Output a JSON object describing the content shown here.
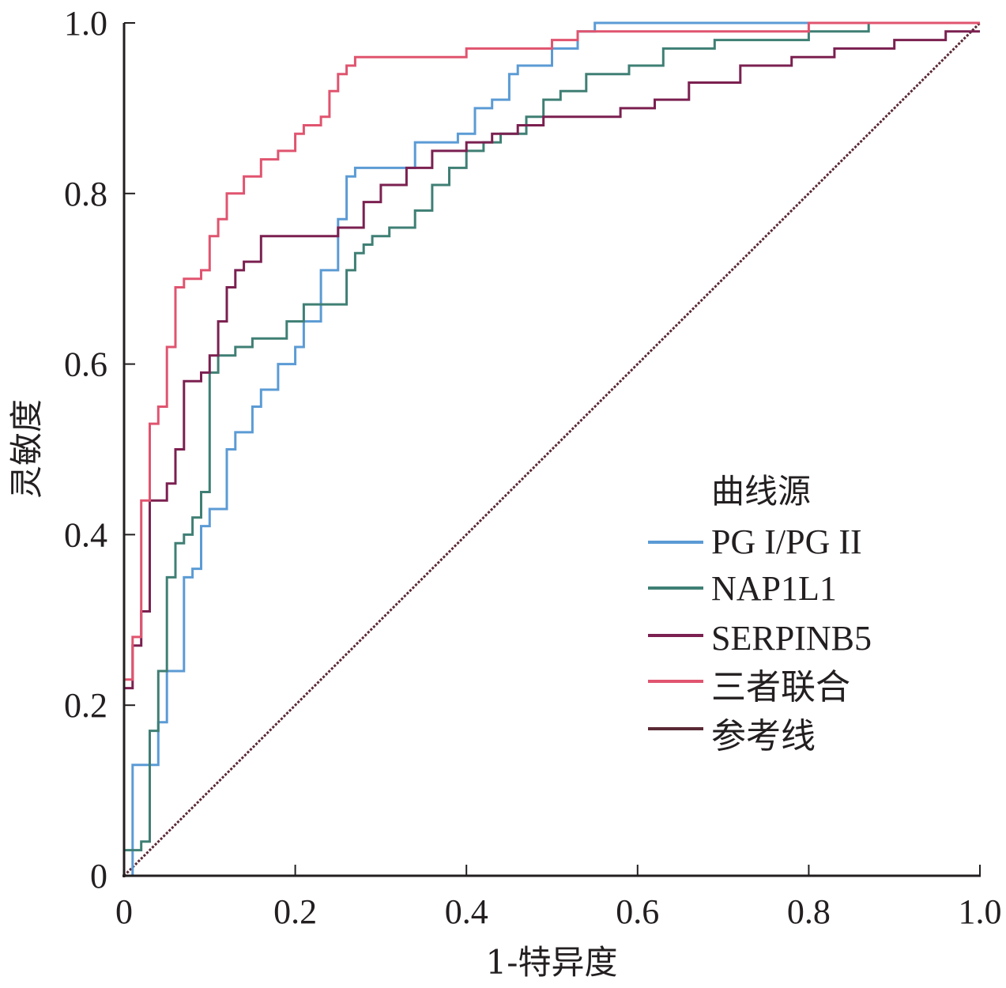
{
  "chart_data": {
    "type": "line",
    "title": "",
    "xlabel": "1-特异度",
    "ylabel": "灵敏度",
    "xlim": [
      0,
      1.0
    ],
    "ylim": [
      0,
      1.0
    ],
    "x_ticks": [
      0,
      0.2,
      0.4,
      0.6,
      0.8,
      1.0
    ],
    "x_tick_labels": [
      "0",
      "0.2",
      "0.4",
      "0.6",
      "0.8",
      "1.0"
    ],
    "y_ticks": [
      0,
      0.2,
      0.4,
      0.6,
      0.8,
      1.0
    ],
    "y_tick_labels": [
      "0",
      "0.2",
      "0.4",
      "0.6",
      "0.8",
      "1.0"
    ],
    "grid": false,
    "legend": {
      "title": "曲线源",
      "placement": "right"
    },
    "series": [
      {
        "name": "PG I/PG II",
        "color": "#5b9bd5",
        "step": true,
        "x": [
          0,
          0.01,
          0.01,
          0.04,
          0.04,
          0.05,
          0.05,
          0.07,
          0.07,
          0.08,
          0.08,
          0.09,
          0.09,
          0.1,
          0.1,
          0.12,
          0.12,
          0.13,
          0.13,
          0.15,
          0.15,
          0.16,
          0.16,
          0.18,
          0.18,
          0.2,
          0.2,
          0.21,
          0.21,
          0.23,
          0.23,
          0.25,
          0.25,
          0.26,
          0.26,
          0.27,
          0.27,
          0.29,
          0.29,
          0.34,
          0.34,
          0.37,
          0.37,
          0.39,
          0.39,
          0.41,
          0.41,
          0.43,
          0.43,
          0.45,
          0.45,
          0.46,
          0.46,
          0.5,
          0.5,
          0.53,
          0.53,
          0.55,
          0.55,
          1.0
        ],
        "y": [
          0,
          0,
          0.13,
          0.13,
          0.18,
          0.18,
          0.24,
          0.24,
          0.35,
          0.35,
          0.36,
          0.36,
          0.41,
          0.41,
          0.43,
          0.43,
          0.5,
          0.5,
          0.52,
          0.52,
          0.55,
          0.55,
          0.57,
          0.57,
          0.6,
          0.6,
          0.62,
          0.62,
          0.65,
          0.65,
          0.71,
          0.71,
          0.77,
          0.77,
          0.82,
          0.82,
          0.83,
          0.83,
          0.83,
          0.83,
          0.86,
          0.86,
          0.86,
          0.86,
          0.87,
          0.87,
          0.9,
          0.9,
          0.91,
          0.91,
          0.94,
          0.94,
          0.95,
          0.95,
          0.97,
          0.97,
          0.99,
          0.99,
          1.0,
          1.0
        ]
      },
      {
        "name": "NAP1L1",
        "color": "#3f7f74",
        "step": true,
        "x": [
          0,
          0.02,
          0.02,
          0.03,
          0.03,
          0.04,
          0.04,
          0.05,
          0.05,
          0.06,
          0.06,
          0.07,
          0.07,
          0.08,
          0.08,
          0.09,
          0.09,
          0.1,
          0.1,
          0.11,
          0.11,
          0.13,
          0.13,
          0.15,
          0.15,
          0.19,
          0.19,
          0.21,
          0.21,
          0.24,
          0.24,
          0.26,
          0.26,
          0.27,
          0.27,
          0.28,
          0.28,
          0.29,
          0.29,
          0.31,
          0.31,
          0.34,
          0.34,
          0.36,
          0.36,
          0.38,
          0.38,
          0.4,
          0.4,
          0.42,
          0.42,
          0.44,
          0.44,
          0.47,
          0.47,
          0.49,
          0.49,
          0.51,
          0.51,
          0.54,
          0.54,
          0.59,
          0.59,
          0.63,
          0.63,
          0.69,
          0.69,
          0.75,
          0.75,
          0.8,
          0.8,
          0.85,
          0.85,
          0.87,
          0.87,
          0.88,
          0.88,
          1.0
        ],
        "y": [
          0.03,
          0.03,
          0.04,
          0.04,
          0.17,
          0.17,
          0.24,
          0.24,
          0.35,
          0.35,
          0.39,
          0.39,
          0.4,
          0.4,
          0.42,
          0.42,
          0.45,
          0.45,
          0.59,
          0.59,
          0.61,
          0.61,
          0.62,
          0.62,
          0.63,
          0.63,
          0.65,
          0.65,
          0.67,
          0.67,
          0.67,
          0.67,
          0.71,
          0.71,
          0.73,
          0.73,
          0.74,
          0.74,
          0.75,
          0.75,
          0.76,
          0.76,
          0.78,
          0.78,
          0.81,
          0.81,
          0.83,
          0.83,
          0.85,
          0.85,
          0.86,
          0.86,
          0.87,
          0.87,
          0.89,
          0.89,
          0.91,
          0.91,
          0.92,
          0.92,
          0.94,
          0.94,
          0.95,
          0.95,
          0.97,
          0.97,
          0.98,
          0.98,
          0.98,
          0.98,
          0.99,
          0.99,
          0.99,
          0.99,
          1.0,
          1.0,
          1.0,
          1.0
        ]
      },
      {
        "name": "SERPINB5",
        "color": "#7b2050",
        "step": true,
        "x": [
          0,
          0.01,
          0.01,
          0.02,
          0.02,
          0.03,
          0.03,
          0.05,
          0.05,
          0.06,
          0.06,
          0.07,
          0.07,
          0.09,
          0.09,
          0.1,
          0.1,
          0.11,
          0.11,
          0.12,
          0.12,
          0.13,
          0.13,
          0.14,
          0.14,
          0.16,
          0.16,
          0.23,
          0.23,
          0.25,
          0.25,
          0.28,
          0.28,
          0.3,
          0.3,
          0.33,
          0.33,
          0.36,
          0.36,
          0.4,
          0.4,
          0.43,
          0.43,
          0.46,
          0.46,
          0.49,
          0.49,
          0.52,
          0.52,
          0.58,
          0.58,
          0.62,
          0.62,
          0.66,
          0.66,
          0.72,
          0.72,
          0.78,
          0.78,
          0.83,
          0.83,
          0.9,
          0.9,
          0.96,
          0.96,
          1.0
        ],
        "y": [
          0.22,
          0.22,
          0.27,
          0.27,
          0.31,
          0.31,
          0.44,
          0.44,
          0.46,
          0.46,
          0.5,
          0.5,
          0.58,
          0.58,
          0.59,
          0.59,
          0.61,
          0.61,
          0.65,
          0.65,
          0.69,
          0.69,
          0.71,
          0.71,
          0.72,
          0.72,
          0.75,
          0.75,
          0.75,
          0.75,
          0.76,
          0.76,
          0.79,
          0.79,
          0.81,
          0.81,
          0.83,
          0.83,
          0.85,
          0.85,
          0.86,
          0.86,
          0.87,
          0.87,
          0.88,
          0.88,
          0.89,
          0.89,
          0.89,
          0.89,
          0.9,
          0.9,
          0.91,
          0.91,
          0.93,
          0.93,
          0.95,
          0.95,
          0.96,
          0.96,
          0.97,
          0.97,
          0.98,
          0.98,
          0.99,
          0.99
        ]
      },
      {
        "name": "三者联合",
        "color": "#e0546f",
        "step": true,
        "x": [
          0,
          0.01,
          0.01,
          0.02,
          0.02,
          0.03,
          0.03,
          0.04,
          0.04,
          0.05,
          0.05,
          0.06,
          0.06,
          0.07,
          0.07,
          0.09,
          0.09,
          0.1,
          0.1,
          0.11,
          0.11,
          0.12,
          0.12,
          0.14,
          0.14,
          0.16,
          0.16,
          0.18,
          0.18,
          0.2,
          0.2,
          0.21,
          0.21,
          0.23,
          0.23,
          0.24,
          0.24,
          0.25,
          0.25,
          0.26,
          0.26,
          0.27,
          0.27,
          0.3,
          0.3,
          0.4,
          0.4,
          0.5,
          0.5,
          0.53,
          0.53,
          0.6,
          0.6,
          0.8,
          0.8,
          0.88,
          0.88,
          1.0
        ],
        "y": [
          0.23,
          0.23,
          0.28,
          0.28,
          0.44,
          0.44,
          0.53,
          0.53,
          0.55,
          0.55,
          0.62,
          0.62,
          0.69,
          0.69,
          0.7,
          0.7,
          0.71,
          0.71,
          0.75,
          0.75,
          0.77,
          0.77,
          0.8,
          0.8,
          0.82,
          0.82,
          0.84,
          0.84,
          0.85,
          0.85,
          0.87,
          0.87,
          0.88,
          0.88,
          0.89,
          0.89,
          0.92,
          0.92,
          0.94,
          0.94,
          0.95,
          0.95,
          0.96,
          0.96,
          0.96,
          0.96,
          0.97,
          0.97,
          0.98,
          0.98,
          0.99,
          0.99,
          0.99,
          0.99,
          1.0,
          1.0,
          1.0,
          1.0
        ]
      },
      {
        "name": "参考线",
        "color": "#5a2a36",
        "dashed": true,
        "x": [
          0,
          1.0
        ],
        "y": [
          0,
          1.0
        ]
      }
    ]
  }
}
